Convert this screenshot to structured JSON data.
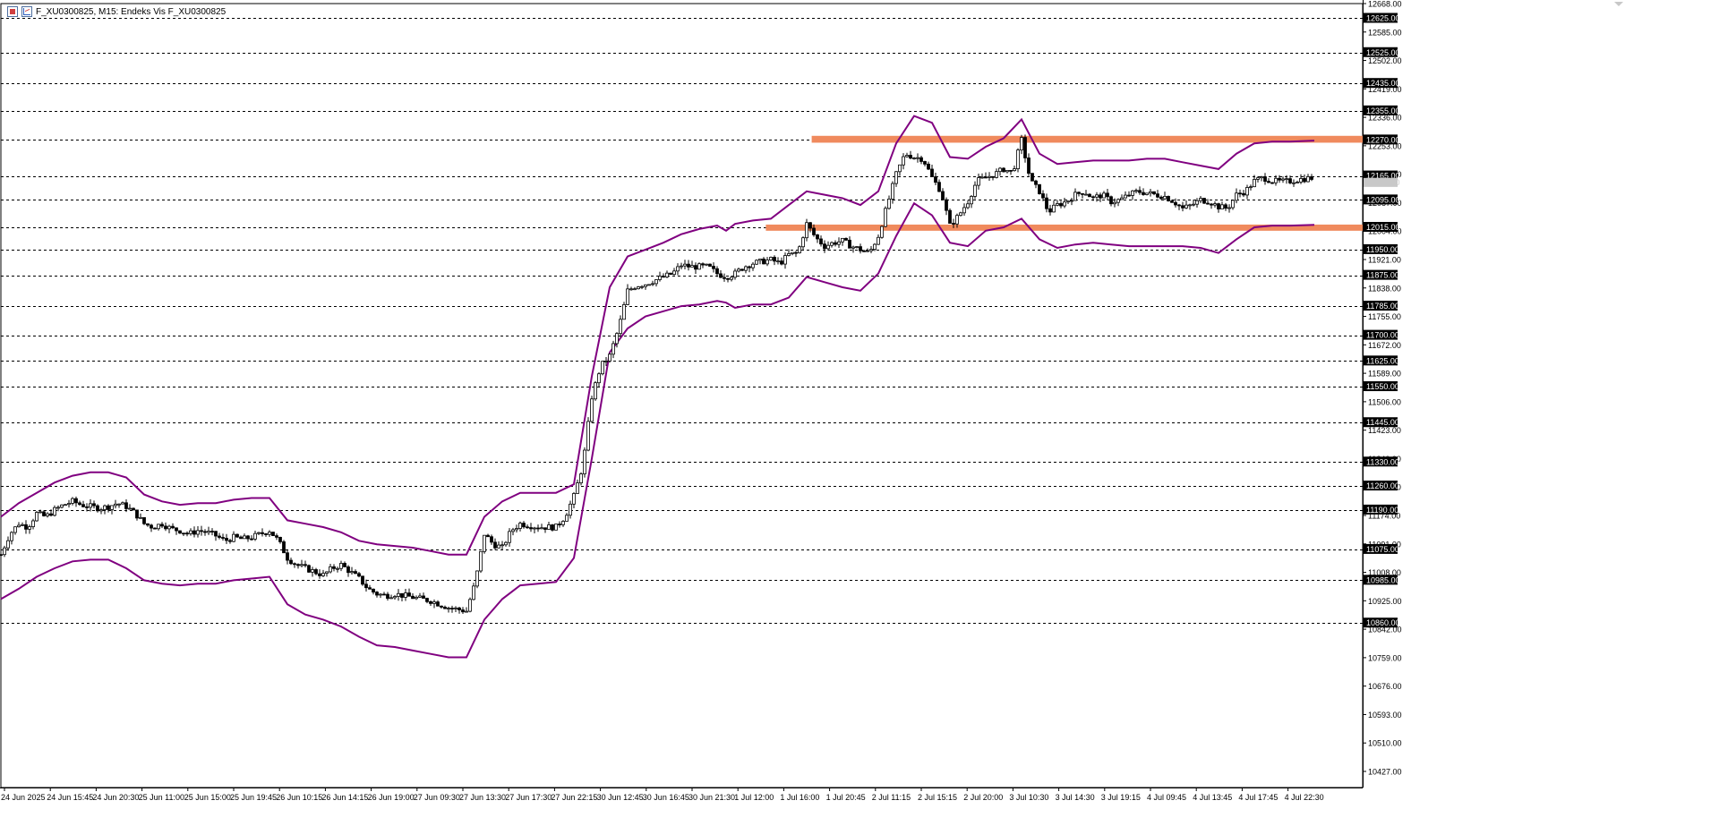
{
  "window": {
    "title": "F_XU0300825, M15:  Endeks Vis F_XU0300825"
  },
  "icons": {
    "window_icon": "window-icon",
    "chart_icon": "chart-icon"
  },
  "colors": {
    "background": "#ffffff",
    "grid": "#000000",
    "candles": "#000000",
    "bollinger": "#800080",
    "zone": "#f08a5d",
    "price_label_bg": "#000000",
    "price_label_text": "#ffffff"
  },
  "chart_data": {
    "type": "candlestick",
    "y_scale": {
      "min": 10380,
      "max": 12668
    },
    "y_tick_labels": [
      "12668.00",
      "12585.00",
      "12502.00",
      "12419.00",
      "12336.00",
      "12253.00",
      "12170.00",
      "12087.00",
      "12004.00",
      "11921.00",
      "11838.00",
      "11755.00",
      "11672.00",
      "11589.00",
      "11506.00",
      "11423.00",
      "11340.00",
      "11257.00",
      "11174.00",
      "11091.00",
      "11008.00",
      "10925.00",
      "10842.00",
      "10759.00",
      "10676.00",
      "10593.00",
      "10510.00",
      "10427.00"
    ],
    "y_tick_values": [
      12668,
      12585,
      12502,
      12419,
      12336,
      12253,
      12170,
      12087,
      12004,
      11921,
      11838,
      11755,
      11672,
      11589,
      11506,
      11423,
      11340,
      11257,
      11174,
      11091,
      11008,
      10925,
      10842,
      10759,
      10676,
      10593,
      10510,
      10427
    ],
    "level_labels": [
      "12625.00",
      "12525.00",
      "12435.00",
      "12355.00",
      "12270.00",
      "12165.00",
      "12095.00",
      "12015.00",
      "11950.00",
      "11875.00",
      "11785.00",
      "11700.00",
      "11625.00",
      "11550.00",
      "11445.00",
      "11330.00",
      "11260.00",
      "11190.00",
      "11075.00",
      "10985.00",
      "10860.00"
    ],
    "level_values": [
      12625,
      12525,
      12435,
      12355,
      12270,
      12165,
      12095,
      12015,
      11950,
      11875,
      11785,
      11700,
      11625,
      11550,
      11445,
      11330,
      11260,
      11190,
      11075,
      10985,
      10860
    ],
    "current_price": {
      "label": "12146.00",
      "value": 12146
    },
    "x_tick_labels": [
      "24 Jun 2025",
      "24 Jun 15:45",
      "24 Jun 20:30",
      "25 Jun 11:00",
      "25 Jun 15:00",
      "25 Jun 19:45",
      "26 Jun 10:15",
      "26 Jun 14:15",
      "26 Jun 19:00",
      "27 Jun 09:30",
      "27 Jun 13:30",
      "27 Jun 17:30",
      "27 Jun 22:15",
      "30 Jun 12:45",
      "30 Jun 16:45",
      "30 Jun 21:30",
      "1 Jul 12:00",
      "1 Jul 16:00",
      "1 Jul 20:45",
      "2 Jul 11:15",
      "2 Jul 15:15",
      "2 Jul 20:00",
      "3 Jul 10:30",
      "3 Jul 14:30",
      "3 Jul 19:15",
      "4 Jul 09:45",
      "4 Jul 13:45",
      "4 Jul 17:45",
      "4 Jul 22:30"
    ],
    "zones": [
      {
        "from_label": "1 Jul 20:45",
        "top": 12282,
        "bottom": 12262
      },
      {
        "from_label": "1 Jul 16:00",
        "top": 12023,
        "bottom": 12005
      }
    ],
    "price_path": [
      [
        0,
        11060
      ],
      [
        10,
        11120
      ],
      [
        20,
        11150
      ],
      [
        30,
        11140
      ],
      [
        40,
        11180
      ],
      [
        50,
        11170
      ],
      [
        60,
        11190
      ],
      [
        70,
        11205
      ],
      [
        80,
        11215
      ],
      [
        90,
        11205
      ],
      [
        100,
        11200
      ],
      [
        110,
        11195
      ],
      [
        120,
        11200
      ],
      [
        130,
        11210
      ],
      [
        140,
        11200
      ],
      [
        150,
        11180
      ],
      [
        160,
        11150
      ],
      [
        170,
        11140
      ],
      [
        180,
        11150
      ],
      [
        190,
        11135
      ],
      [
        200,
        11130
      ],
      [
        210,
        11120
      ],
      [
        220,
        11130
      ],
      [
        230,
        11125
      ],
      [
        240,
        11115
      ],
      [
        250,
        11100
      ],
      [
        260,
        11110
      ],
      [
        270,
        11105
      ],
      [
        280,
        11110
      ],
      [
        290,
        11120
      ],
      [
        300,
        11130
      ],
      [
        310,
        11100
      ],
      [
        320,
        11050
      ],
      [
        330,
        11030
      ],
      [
        340,
        11020
      ],
      [
        350,
        11010
      ],
      [
        360,
        11000
      ],
      [
        370,
        11020
      ],
      [
        380,
        11030
      ],
      [
        390,
        11010
      ],
      [
        400,
        10990
      ],
      [
        410,
        10960
      ],
      [
        420,
        10945
      ],
      [
        430,
        10940
      ],
      [
        440,
        10945
      ],
      [
        450,
        10940
      ],
      [
        460,
        10935
      ],
      [
        470,
        10930
      ],
      [
        480,
        10925
      ],
      [
        490,
        10915
      ],
      [
        500,
        10905
      ],
      [
        510,
        10900
      ],
      [
        520,
        10895
      ],
      [
        530,
        10980
      ],
      [
        540,
        11120
      ],
      [
        550,
        11090
      ],
      [
        560,
        11080
      ],
      [
        570,
        11130
      ],
      [
        580,
        11150
      ],
      [
        590,
        11145
      ],
      [
        600,
        11140
      ],
      [
        610,
        11140
      ],
      [
        620,
        11140
      ],
      [
        630,
        11170
      ],
      [
        640,
        11230
      ],
      [
        650,
        11320
      ],
      [
        660,
        11520
      ],
      [
        670,
        11610
      ],
      [
        680,
        11640
      ],
      [
        690,
        11720
      ],
      [
        700,
        11830
      ],
      [
        710,
        11845
      ],
      [
        720,
        11850
      ],
      [
        730,
        11860
      ],
      [
        740,
        11870
      ],
      [
        750,
        11880
      ],
      [
        760,
        11905
      ],
      [
        770,
        11900
      ],
      [
        780,
        11900
      ],
      [
        790,
        11900
      ],
      [
        800,
        11880
      ],
      [
        810,
        11870
      ],
      [
        820,
        11880
      ],
      [
        830,
        11900
      ],
      [
        840,
        11910
      ],
      [
        850,
        11915
      ],
      [
        860,
        11920
      ],
      [
        870,
        11910
      ],
      [
        880,
        11935
      ],
      [
        890,
        11940
      ],
      [
        900,
        12025
      ],
      [
        910,
        11985
      ],
      [
        920,
        11960
      ],
      [
        930,
        11970
      ],
      [
        940,
        11975
      ],
      [
        950,
        11960
      ],
      [
        960,
        11950
      ],
      [
        970,
        11940
      ],
      [
        980,
        11990
      ],
      [
        990,
        12080
      ],
      [
        1000,
        12170
      ],
      [
        1010,
        12230
      ],
      [
        1020,
        12220
      ],
      [
        1030,
        12215
      ],
      [
        1040,
        12160
      ],
      [
        1050,
        12120
      ],
      [
        1060,
        12020
      ],
      [
        1070,
        12050
      ],
      [
        1080,
        12090
      ],
      [
        1090,
        12150
      ],
      [
        1100,
        12160
      ],
      [
        1110,
        12170
      ],
      [
        1120,
        12185
      ],
      [
        1130,
        12175
      ],
      [
        1140,
        12270
      ],
      [
        1150,
        12150
      ],
      [
        1160,
        12120
      ],
      [
        1170,
        12060
      ],
      [
        1180,
        12080
      ],
      [
        1190,
        12090
      ],
      [
        1200,
        12110
      ],
      [
        1210,
        12120
      ],
      [
        1220,
        12100
      ],
      [
        1230,
        12110
      ],
      [
        1240,
        12090
      ],
      [
        1250,
        12095
      ],
      [
        1260,
        12110
      ],
      [
        1270,
        12120
      ],
      [
        1280,
        12115
      ],
      [
        1290,
        12110
      ],
      [
        1300,
        12105
      ],
      [
        1310,
        12090
      ],
      [
        1320,
        12070
      ],
      [
        1330,
        12080
      ],
      [
        1340,
        12095
      ],
      [
        1350,
        12090
      ],
      [
        1360,
        12075
      ],
      [
        1370,
        12070
      ],
      [
        1380,
        12110
      ],
      [
        1390,
        12120
      ],
      [
        1400,
        12150
      ],
      [
        1410,
        12160
      ],
      [
        1420,
        12150
      ],
      [
        1430,
        12148
      ],
      [
        1440,
        12150
      ],
      [
        1450,
        12155
      ],
      [
        1460,
        12158
      ],
      [
        1467,
        12160
      ]
    ],
    "bollinger_upper": [
      [
        0,
        11170
      ],
      [
        20,
        11210
      ],
      [
        40,
        11240
      ],
      [
        60,
        11270
      ],
      [
        80,
        11290
      ],
      [
        100,
        11300
      ],
      [
        120,
        11300
      ],
      [
        140,
        11285
      ],
      [
        160,
        11235
      ],
      [
        180,
        11215
      ],
      [
        200,
        11205
      ],
      [
        220,
        11210
      ],
      [
        240,
        11210
      ],
      [
        260,
        11220
      ],
      [
        280,
        11225
      ],
      [
        300,
        11225
      ],
      [
        320,
        11160
      ],
      [
        340,
        11150
      ],
      [
        360,
        11140
      ],
      [
        380,
        11125
      ],
      [
        400,
        11100
      ],
      [
        420,
        11090
      ],
      [
        440,
        11085
      ],
      [
        460,
        11080
      ],
      [
        480,
        11070
      ],
      [
        500,
        11060
      ],
      [
        520,
        11060
      ],
      [
        540,
        11170
      ],
      [
        560,
        11215
      ],
      [
        580,
        11240
      ],
      [
        600,
        11240
      ],
      [
        620,
        11240
      ],
      [
        640,
        11265
      ],
      [
        660,
        11580
      ],
      [
        680,
        11840
      ],
      [
        700,
        11930
      ],
      [
        720,
        11950
      ],
      [
        740,
        11970
      ],
      [
        760,
        11995
      ],
      [
        780,
        12010
      ],
      [
        800,
        12020
      ],
      [
        810,
        12005
      ],
      [
        820,
        12025
      ],
      [
        840,
        12035
      ],
      [
        860,
        12040
      ],
      [
        880,
        12080
      ],
      [
        900,
        12120
      ],
      [
        920,
        12110
      ],
      [
        940,
        12100
      ],
      [
        960,
        12080
      ],
      [
        980,
        12120
      ],
      [
        1000,
        12260
      ],
      [
        1020,
        12340
      ],
      [
        1040,
        12320
      ],
      [
        1060,
        12220
      ],
      [
        1080,
        12215
      ],
      [
        1100,
        12250
      ],
      [
        1120,
        12275
      ],
      [
        1140,
        12330
      ],
      [
        1160,
        12230
      ],
      [
        1180,
        12200
      ],
      [
        1200,
        12205
      ],
      [
        1220,
        12210
      ],
      [
        1240,
        12210
      ],
      [
        1260,
        12210
      ],
      [
        1280,
        12215
      ],
      [
        1300,
        12215
      ],
      [
        1320,
        12205
      ],
      [
        1340,
        12195
      ],
      [
        1360,
        12185
      ],
      [
        1380,
        12230
      ],
      [
        1400,
        12260
      ],
      [
        1420,
        12265
      ],
      [
        1440,
        12265
      ],
      [
        1467,
        12268
      ]
    ],
    "bollinger_lower": [
      [
        0,
        10930
      ],
      [
        20,
        10960
      ],
      [
        40,
        10995
      ],
      [
        60,
        11020
      ],
      [
        80,
        11040
      ],
      [
        100,
        11045
      ],
      [
        120,
        11045
      ],
      [
        140,
        11020
      ],
      [
        160,
        10985
      ],
      [
        180,
        10975
      ],
      [
        200,
        10970
      ],
      [
        220,
        10975
      ],
      [
        240,
        10975
      ],
      [
        260,
        10985
      ],
      [
        280,
        10990
      ],
      [
        300,
        10995
      ],
      [
        320,
        10915
      ],
      [
        340,
        10885
      ],
      [
        360,
        10870
      ],
      [
        380,
        10850
      ],
      [
        400,
        10820
      ],
      [
        420,
        10795
      ],
      [
        440,
        10790
      ],
      [
        460,
        10780
      ],
      [
        480,
        10770
      ],
      [
        500,
        10760
      ],
      [
        520,
        10760
      ],
      [
        540,
        10870
      ],
      [
        560,
        10930
      ],
      [
        580,
        10970
      ],
      [
        600,
        10975
      ],
      [
        620,
        10980
      ],
      [
        640,
        11050
      ],
      [
        660,
        11340
      ],
      [
        680,
        11650
      ],
      [
        700,
        11720
      ],
      [
        720,
        11755
      ],
      [
        740,
        11770
      ],
      [
        760,
        11785
      ],
      [
        780,
        11790
      ],
      [
        800,
        11800
      ],
      [
        810,
        11795
      ],
      [
        820,
        11780
      ],
      [
        840,
        11790
      ],
      [
        860,
        11790
      ],
      [
        880,
        11810
      ],
      [
        900,
        11870
      ],
      [
        920,
        11855
      ],
      [
        940,
        11840
      ],
      [
        960,
        11830
      ],
      [
        980,
        11880
      ],
      [
        1000,
        11990
      ],
      [
        1020,
        12085
      ],
      [
        1040,
        12050
      ],
      [
        1060,
        11970
      ],
      [
        1080,
        11960
      ],
      [
        1100,
        12005
      ],
      [
        1120,
        12015
      ],
      [
        1140,
        12040
      ],
      [
        1160,
        11980
      ],
      [
        1180,
        11955
      ],
      [
        1200,
        11965
      ],
      [
        1220,
        11970
      ],
      [
        1240,
        11965
      ],
      [
        1260,
        11960
      ],
      [
        1280,
        11960
      ],
      [
        1300,
        11960
      ],
      [
        1320,
        11960
      ],
      [
        1340,
        11955
      ],
      [
        1360,
        11940
      ],
      [
        1380,
        11980
      ],
      [
        1400,
        12015
      ],
      [
        1420,
        12020
      ],
      [
        1440,
        12020
      ],
      [
        1467,
        12022
      ]
    ],
    "grid": "horizontal-dashed",
    "legend": "none"
  }
}
